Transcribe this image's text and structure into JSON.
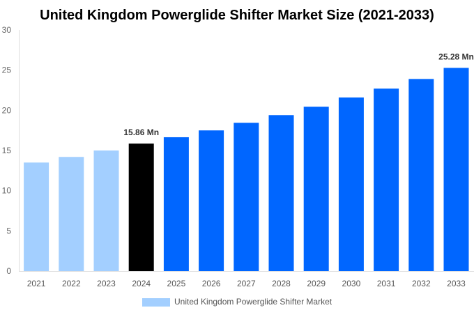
{
  "chart_data": {
    "type": "bar",
    "title": "United Kingdom Powerglide Shifter Market Size (2021-2033)",
    "xlabel": "",
    "ylabel": "",
    "ylim": [
      0,
      30
    ],
    "yticks": [
      "0",
      "5",
      "10",
      "15",
      "20",
      "25",
      "30"
    ],
    "grid": false,
    "legend_position": "bottom",
    "categories": [
      "2021",
      "2022",
      "2023",
      "2024",
      "2025",
      "2026",
      "2027",
      "2028",
      "2029",
      "2030",
      "2031",
      "2032",
      "2033"
    ],
    "series": [
      {
        "name": "United Kingdom Powerglide Shifter Market",
        "values": [
          13.5,
          14.2,
          15.0,
          15.86,
          16.65,
          17.5,
          18.45,
          19.4,
          20.45,
          21.6,
          22.7,
          23.9,
          25.28
        ]
      }
    ],
    "bar_colors": [
      "#a3cfff",
      "#a3cfff",
      "#a3cfff",
      "#000000",
      "#0066ff",
      "#0066ff",
      "#0066ff",
      "#0066ff",
      "#0066ff",
      "#0066ff",
      "#0066ff",
      "#0066ff",
      "#0066ff"
    ],
    "legend_color": "#a3cfff",
    "annotations": [
      {
        "category": "2024",
        "text": "15.86 Mn"
      },
      {
        "category": "2033",
        "text": "25.28 Mn"
      }
    ]
  }
}
